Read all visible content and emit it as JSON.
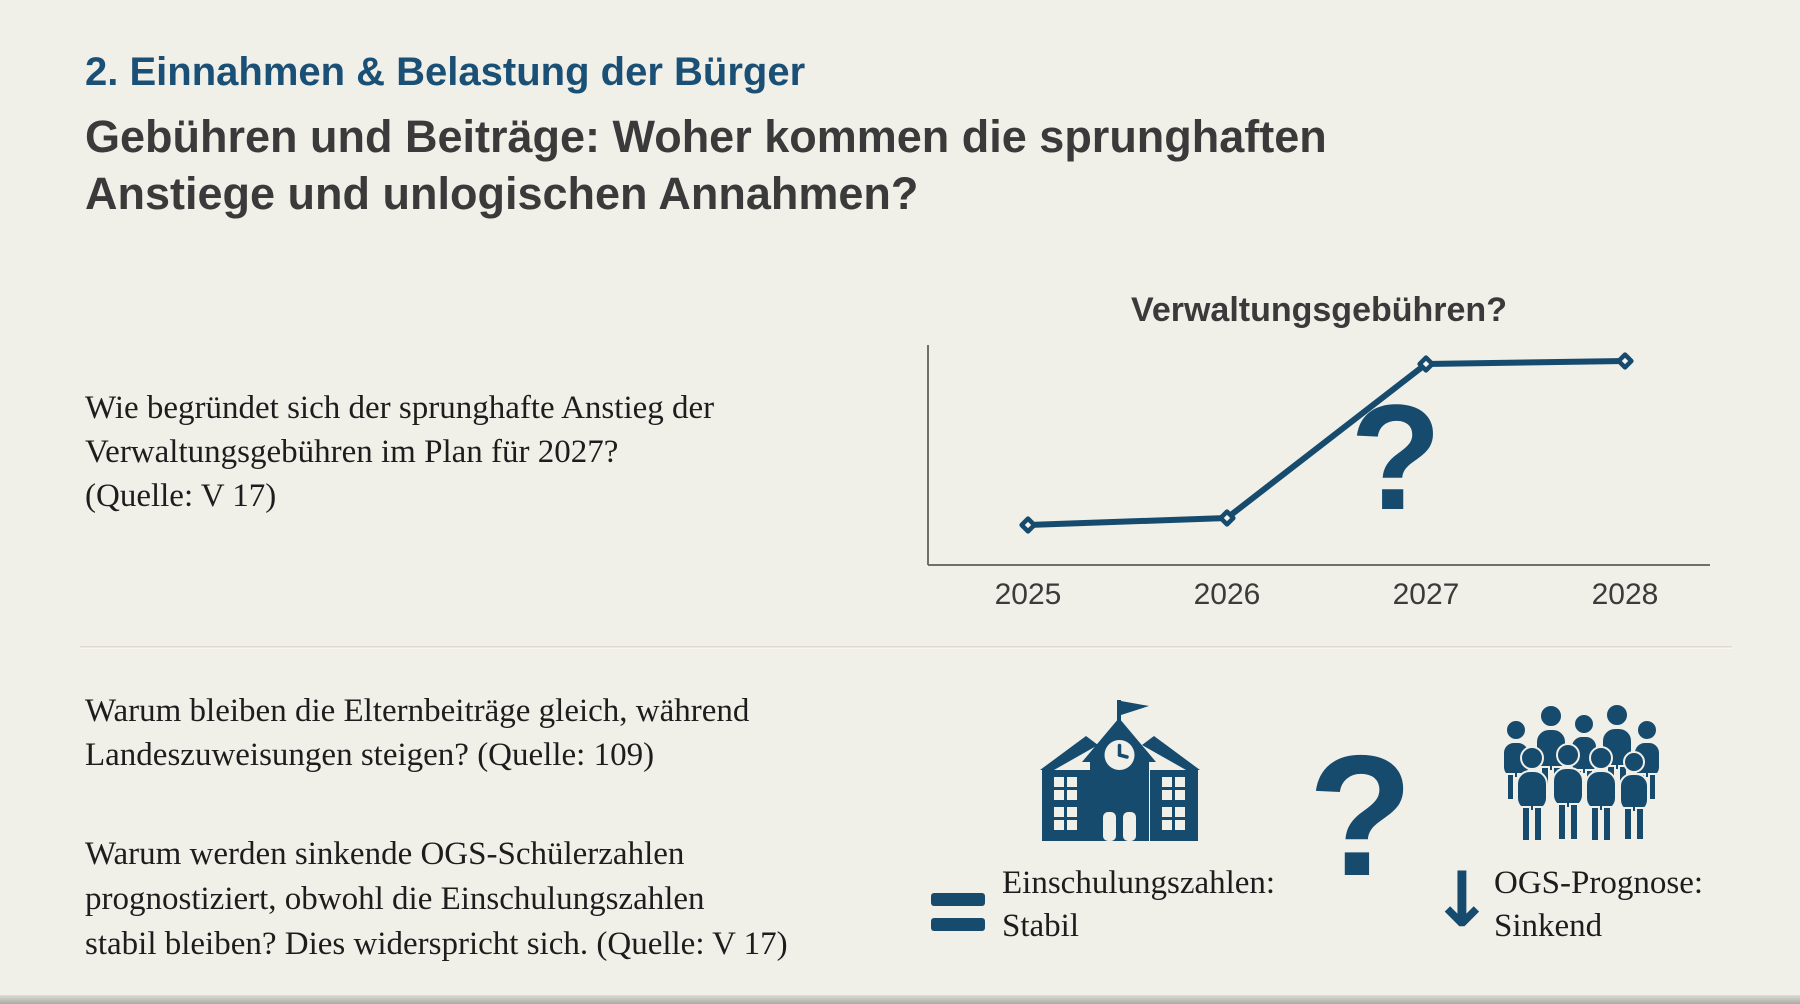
{
  "colors": {
    "background": "#f0efe8",
    "accent": "#174b6e",
    "heading": "#1a5075",
    "subheading": "#3a3a3a",
    "body_text": "#1d1d1d",
    "axis": "#70706a"
  },
  "header": {
    "section_title": "2. Einnahmen & Belastung der Bürger",
    "subtitle": "Gebühren und Beiträge: Woher kommen die sprunghaften\nAnstiege und unlogischen Annahmen?"
  },
  "top_section": {
    "question": "Wie begründet sich der sprunghafte Anstieg der\nVerwaltungsgebühren im Plan für 2027?\n(Quelle: V 17)"
  },
  "chart_data": {
    "type": "line",
    "title": "Verwaltungsgebühren?",
    "categories": [
      "2025",
      "2026",
      "2027",
      "2028"
    ],
    "values": [
      40,
      47,
      201,
      204
    ],
    "ylim": [
      0,
      220
    ],
    "xlabel": "",
    "ylabel": "",
    "grid": false,
    "legend_position": "none",
    "marker": "open-diamond",
    "annotation": "?"
  },
  "bottom_section": {
    "question1": "Warum bleiben die Elternbeiträge gleich, während\nLandeszuweisungen steigen? (Quelle: 109)",
    "question2": "Warum werden sinkende OGS-Schülerzahlen\nprognostiziert, obwohl die Einschulungszahlen\nstabil bleiben? Dies widerspricht sich. (Quelle: V 17)",
    "equals_symbol": "=",
    "school_icon": "school-building-icon",
    "school_label": "Einschulungszahlen:\nStabil",
    "question_symbol": "?",
    "crowd_icon": "people-group-icon",
    "arrow_symbol": "↓",
    "ogs_label": "OGS-Prognose:\nSinkend"
  }
}
